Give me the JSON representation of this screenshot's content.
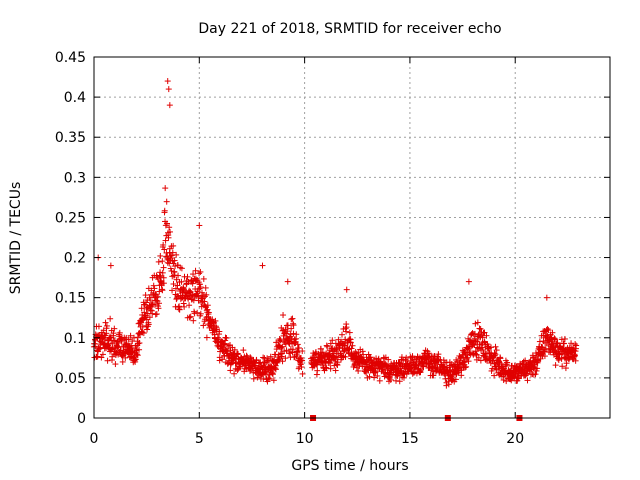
{
  "chart_data": {
    "type": "scatter",
    "title": "Day 221 of 2018, SRMTID for receiver echo",
    "xlabel": "GPS time / hours",
    "ylabel": "SRMTID / TECUs",
    "xlim": [
      0,
      24.5
    ],
    "ylim": [
      0,
      0.45
    ],
    "xticks": [
      0,
      5,
      10,
      15,
      20
    ],
    "xtick_labels": [
      "0",
      "5",
      "10",
      "15",
      "20"
    ],
    "yticks": [
      0,
      0.05,
      0.1,
      0.15,
      0.2,
      0.25,
      0.3,
      0.35,
      0.4,
      0.45
    ],
    "ytick_labels": [
      "0",
      "0.05",
      "0.1",
      "0.15",
      "0.2",
      "0.25",
      "0.3",
      "0.35",
      "0.4",
      "0.45"
    ],
    "grid": true,
    "marker": "+",
    "color": "#e00000",
    "series": [
      {
        "name": "SRMTID",
        "envelope_hours": [
          0,
          0.5,
          1,
          1.5,
          2,
          2.3,
          2.7,
          3,
          3.3,
          3.5,
          3.7,
          4,
          4.5,
          5,
          5.5,
          6,
          7,
          8,
          8.5,
          9,
          9.5,
          9.8,
          10.5,
          11,
          11.5,
          12,
          12.5,
          13,
          14,
          15,
          15.5,
          16,
          16.5,
          17,
          17.5,
          18,
          18.5,
          19,
          19.5,
          20,
          20.5,
          21,
          21.5,
          22,
          22.5,
          22.9
        ],
        "envelope_center": [
          0.09,
          0.1,
          0.09,
          0.085,
          0.08,
          0.13,
          0.14,
          0.15,
          0.2,
          0.25,
          0.19,
          0.16,
          0.15,
          0.16,
          0.12,
          0.085,
          0.07,
          0.06,
          0.065,
          0.1,
          0.1,
          0.07,
          0.07,
          0.075,
          0.08,
          0.1,
          0.07,
          0.065,
          0.06,
          0.065,
          0.07,
          0.07,
          0.06,
          0.055,
          0.07,
          0.1,
          0.09,
          0.07,
          0.06,
          0.055,
          0.06,
          0.07,
          0.1,
          0.085,
          0.08,
          0.08
        ],
        "envelope_spread": [
          0.03,
          0.035,
          0.03,
          0.025,
          0.025,
          0.04,
          0.035,
          0.045,
          0.06,
          0.09,
          0.045,
          0.04,
          0.04,
          0.045,
          0.035,
          0.025,
          0.02,
          0.02,
          0.025,
          0.035,
          0.03,
          0.02,
          0.02,
          0.022,
          0.025,
          0.035,
          0.02,
          0.02,
          0.02,
          0.02,
          0.022,
          0.025,
          0.02,
          0.02,
          0.025,
          0.03,
          0.028,
          0.025,
          0.02,
          0.02,
          0.02,
          0.025,
          0.03,
          0.025,
          0.02,
          0.02
        ],
        "data_gaps_hours": [
          [
            9.9,
            10.3
          ],
          [
            22.95,
            24.5
          ]
        ],
        "peak_values": [
          [
            0.2,
            0.2
          ],
          [
            0.8,
            0.19
          ],
          [
            3.5,
            0.42
          ],
          [
            3.55,
            0.41
          ],
          [
            3.6,
            0.39
          ],
          [
            5.0,
            0.24
          ],
          [
            8.0,
            0.19
          ],
          [
            9.2,
            0.17
          ],
          [
            12.0,
            0.16
          ],
          [
            17.8,
            0.17
          ],
          [
            21.5,
            0.15
          ]
        ]
      }
    ],
    "gap_markers_hours": [
      10.4,
      16.8,
      20.2
    ]
  }
}
